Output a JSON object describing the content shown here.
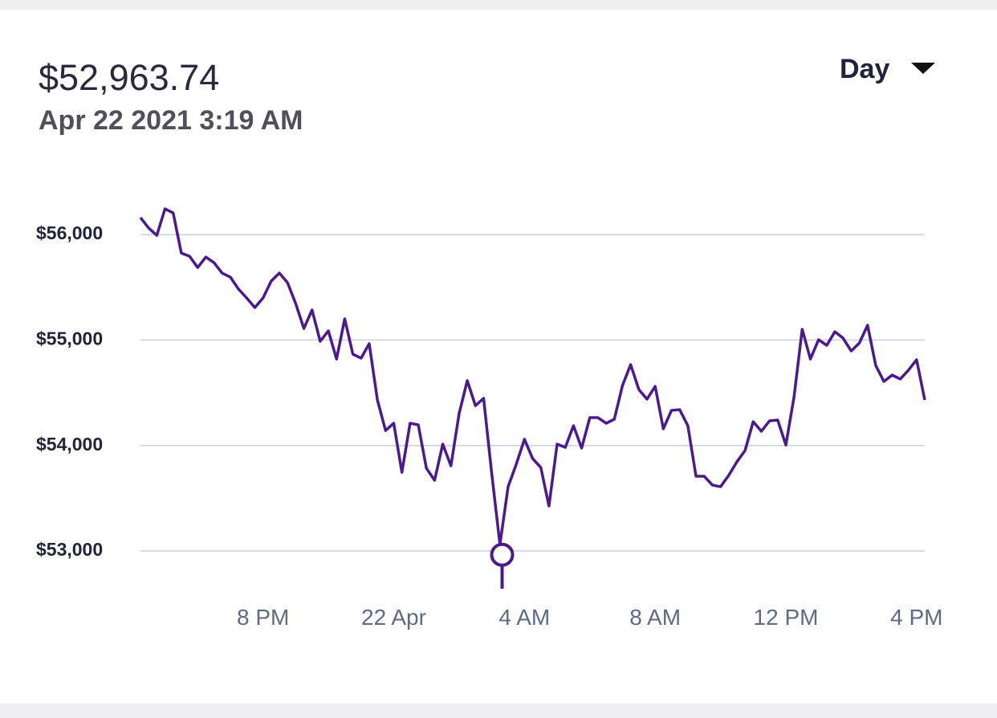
{
  "chart_data": {
    "type": "line",
    "selected": {
      "x": 27.3167,
      "value": 52963.74,
      "value_label": "$52,963.74",
      "x_label": "Apr 22 2021 3:19 AM"
    },
    "range_selector": "Day",
    "x": [
      16.25,
      16.5,
      16.75,
      17,
      17.25,
      17.5,
      17.75,
      18,
      18.25,
      18.5,
      18.75,
      19,
      19.25,
      19.5,
      19.75,
      20,
      20.25,
      20.5,
      20.75,
      21,
      21.25,
      21.5,
      21.75,
      22,
      22.25,
      22.5,
      22.75,
      23,
      23.25,
      23.5,
      23.75,
      24,
      24.25,
      24.5,
      24.75,
      25,
      25.25,
      25.5,
      25.75,
      26,
      26.25,
      26.5,
      26.75,
      27,
      27.25,
      27.5,
      27.75,
      28,
      28.25,
      28.5,
      28.75,
      29,
      29.25,
      29.5,
      29.75,
      30,
      30.25,
      30.5,
      30.75,
      31,
      31.25,
      31.5,
      31.75,
      32,
      32.25,
      32.5,
      32.75,
      33,
      33.25,
      33.5,
      33.75,
      34,
      34.25,
      34.5,
      34.75,
      35,
      35.25,
      35.5,
      35.75,
      36,
      36.25,
      36.5,
      36.75,
      37,
      37.25,
      37.5,
      37.75,
      38,
      38.25,
      38.5,
      38.75,
      39,
      39.25,
      39.5,
      39.75,
      40,
      40.25
    ],
    "series": [
      {
        "color": "#4b1a8e",
        "values": [
          56161,
          56062,
          55993,
          56244,
          56206,
          55825,
          55795,
          55688,
          55787,
          55734,
          55635,
          55597,
          55483,
          55399,
          55308,
          55399,
          55559,
          55635,
          55544,
          55346,
          55110,
          55285,
          54988,
          55087,
          54820,
          55201,
          54866,
          54828,
          54965,
          54432,
          54142,
          54211,
          53746,
          54211,
          54196,
          53784,
          53670,
          54013,
          53807,
          54302,
          54615,
          54378,
          54447,
          53731,
          53061,
          53609,
          53823,
          54059,
          53876,
          53792,
          53426,
          54013,
          53982,
          54188,
          53975,
          54264,
          54264,
          54211,
          54249,
          54569,
          54767,
          54531,
          54439,
          54561,
          54158,
          54333,
          54340,
          54188,
          53708,
          53708,
          53625,
          53609,
          53716,
          53845,
          53952,
          54226,
          54135,
          54234,
          54241,
          54005,
          54462,
          55102,
          54820,
          55003,
          54950,
          55079,
          55018,
          54896,
          54973,
          55140,
          54759,
          54607,
          54668,
          54630,
          54714,
          54813,
          54432
        ]
      }
    ],
    "xlim": [
      16.25,
      40.25
    ],
    "xticks": [
      {
        "value": 20,
        "label": "8 PM"
      },
      {
        "value": 24,
        "label": "22 Apr"
      },
      {
        "value": 28,
        "label": "4 AM"
      },
      {
        "value": 32,
        "label": "8 AM"
      },
      {
        "value": 36,
        "label": "12 PM"
      },
      {
        "value": 40,
        "label": "4 PM"
      }
    ],
    "ylim": [
      52600,
      56400
    ],
    "yticks": [
      {
        "value": 53000,
        "label": "$53,000"
      },
      {
        "value": 54000,
        "label": "$54,000"
      },
      {
        "value": 55000,
        "label": "$55,000"
      },
      {
        "value": 56000,
        "label": "$56,000"
      }
    ],
    "grid": true
  }
}
